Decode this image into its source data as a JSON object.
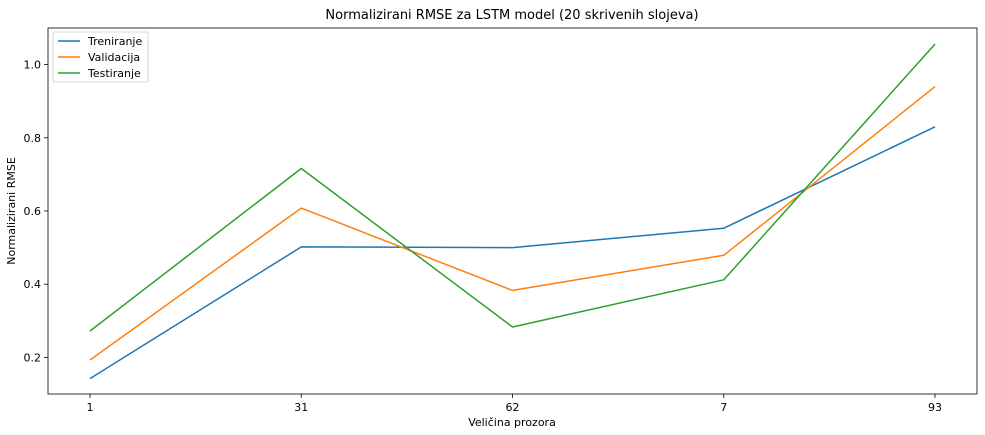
{
  "chart_data": {
    "type": "line",
    "title": "Normalizirani RMSE za LSTM model (20 skrivenih slojeva)",
    "xlabel": "Veličina prozora",
    "ylabel": "Normalizirani RMSE",
    "categories": [
      "1",
      "31",
      "62",
      "7",
      "93"
    ],
    "ylim": [
      0.1,
      1.1
    ],
    "yticks": [
      0.2,
      0.4,
      0.6,
      0.8,
      1.0
    ],
    "ytick_labels": [
      "0.2",
      "0.4",
      "0.6",
      "0.8",
      "1.0"
    ],
    "grid": false,
    "legend_position": "top-left",
    "series": [
      {
        "name": "Treniranje",
        "color": "#1f77b4",
        "values": [
          0.142,
          0.502,
          0.5,
          0.553,
          0.83
        ]
      },
      {
        "name": "Validacija",
        "color": "#ff7f0e",
        "values": [
          0.193,
          0.608,
          0.383,
          0.479,
          0.94
        ]
      },
      {
        "name": "Testiranje",
        "color": "#2ca02c",
        "values": [
          0.272,
          0.716,
          0.283,
          0.412,
          1.056
        ]
      }
    ]
  }
}
